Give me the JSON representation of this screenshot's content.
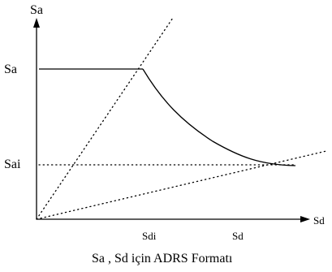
{
  "diagram": {
    "y_axis_label": "Sa",
    "x_axis_label": "Sd",
    "y_tick_sa": "Sa",
    "y_tick_sai": "Sai",
    "x_tick_sdi": "Sdi",
    "x_tick_sd": "Sd",
    "caption": "Sa , Sd için ADRS Formatı"
  }
}
